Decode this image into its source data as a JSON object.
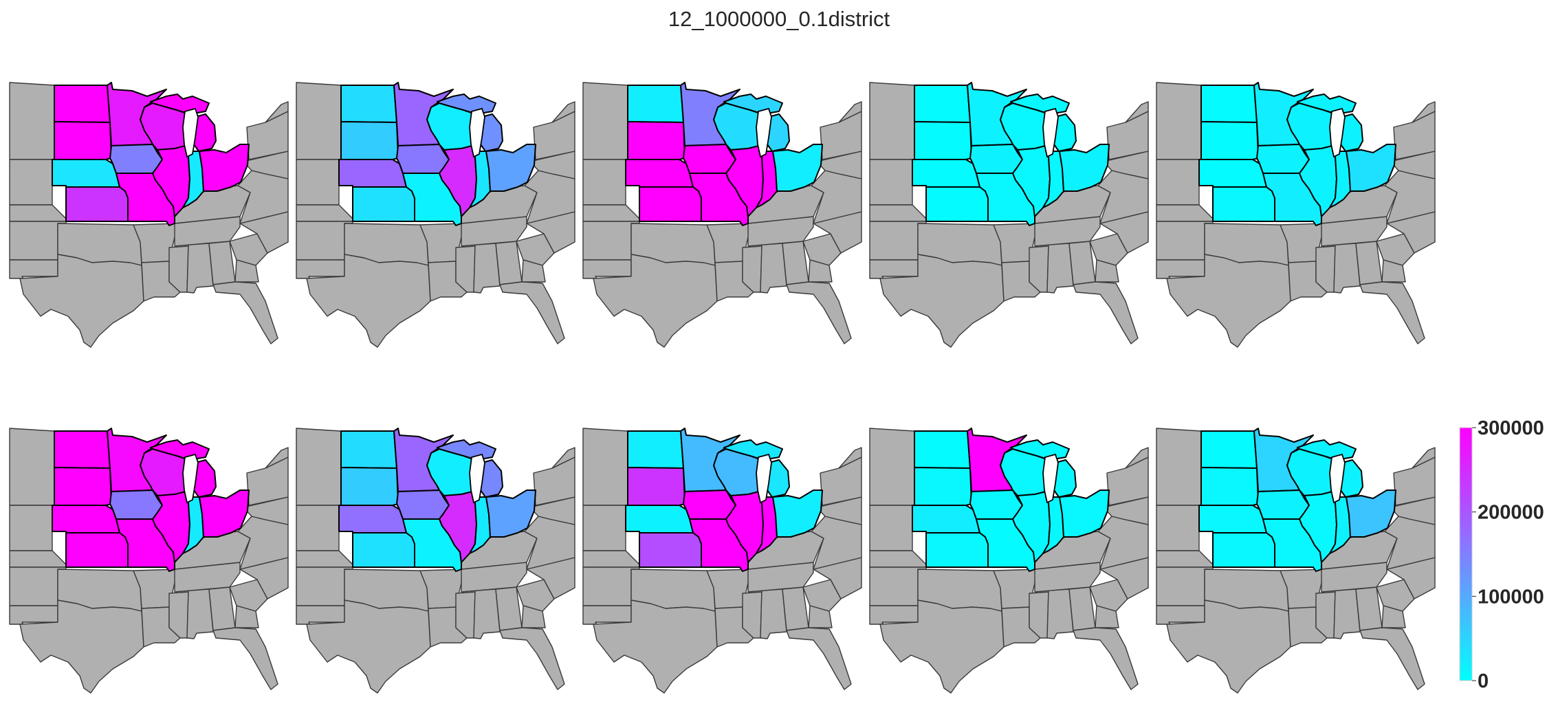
{
  "title": "12_1000000_0.1district",
  "colors": {
    "background_state": "#b0b0b0",
    "scale_low": "#00ffff",
    "scale_high": "#ff00ff"
  },
  "colorbar": {
    "min": 0,
    "max": 300000,
    "ticks": [
      {
        "value": 300000,
        "label": "300000"
      },
      {
        "value": 200000,
        "label": "200000"
      },
      {
        "value": 100000,
        "label": "100000"
      },
      {
        "value": 0,
        "label": "0"
      }
    ]
  },
  "state_order": [
    "ND",
    "SD",
    "NE",
    "KS",
    "MN",
    "IA",
    "MO",
    "WI",
    "IL",
    "MI",
    "IN",
    "OH"
  ],
  "panels": [
    {
      "row": 1,
      "col": 1,
      "values": {
        "ND": 300000,
        "SD": 300000,
        "NE": 30000,
        "KS": 240000,
        "MN": 270000,
        "IA": 150000,
        "MO": 300000,
        "WI": 270000,
        "IL": 300000,
        "MI": 300000,
        "IN": 25000,
        "OH": 300000
      }
    },
    {
      "row": 1,
      "col": 2,
      "values": {
        "ND": 40000,
        "SD": 60000,
        "NE": 180000,
        "KS": 35000,
        "MN": 180000,
        "IA": 160000,
        "MO": 15000,
        "WI": 20000,
        "IL": 250000,
        "MI": 130000,
        "IN": 30000,
        "OH": 110000
      }
    },
    {
      "row": 1,
      "col": 3,
      "values": {
        "ND": 20000,
        "SD": 300000,
        "NE": 300000,
        "KS": 300000,
        "MN": 150000,
        "IA": 300000,
        "MO": 300000,
        "WI": 40000,
        "IL": 300000,
        "MI": 50000,
        "IN": 300000,
        "OH": 20000
      }
    },
    {
      "row": 1,
      "col": 4,
      "values": {
        "ND": 5000,
        "SD": 5000,
        "NE": 5000,
        "KS": 5000,
        "MN": 15000,
        "IA": 15000,
        "MO": 10000,
        "WI": 10000,
        "IL": 10000,
        "MI": 10000,
        "IN": 10000,
        "OH": 15000
      }
    },
    {
      "row": 1,
      "col": 5,
      "values": {
        "ND": 5000,
        "SD": 5000,
        "NE": 5000,
        "KS": 10000,
        "MN": 20000,
        "IA": 15000,
        "MO": 20000,
        "WI": 15000,
        "IL": 15000,
        "MI": 15000,
        "IN": 15000,
        "OH": 35000
      }
    },
    {
      "row": 2,
      "col": 1,
      "values": {
        "ND": 300000,
        "SD": 300000,
        "NE": 300000,
        "KS": 300000,
        "MN": 290000,
        "IA": 160000,
        "MO": 300000,
        "WI": 270000,
        "IL": 300000,
        "MI": 300000,
        "IN": 25000,
        "OH": 300000
      }
    },
    {
      "row": 2,
      "col": 2,
      "values": {
        "ND": 40000,
        "SD": 60000,
        "NE": 170000,
        "KS": 35000,
        "MN": 180000,
        "IA": 160000,
        "MO": 15000,
        "WI": 20000,
        "IL": 250000,
        "MI": 140000,
        "IN": 25000,
        "OH": 110000
      }
    },
    {
      "row": 2,
      "col": 3,
      "values": {
        "ND": 20000,
        "SD": 240000,
        "NE": 15000,
        "KS": 210000,
        "MN": 80000,
        "IA": 300000,
        "MO": 300000,
        "WI": 80000,
        "IL": 300000,
        "MI": 30000,
        "IN": 300000,
        "OH": 20000
      }
    },
    {
      "row": 2,
      "col": 4,
      "values": {
        "ND": 5000,
        "SD": 10000,
        "NE": 20000,
        "KS": 10000,
        "MN": 300000,
        "IA": 10000,
        "MO": 5000,
        "WI": 10000,
        "IL": 10000,
        "MI": 10000,
        "IN": 10000,
        "OH": 10000
      }
    },
    {
      "row": 2,
      "col": 5,
      "values": {
        "ND": 5000,
        "SD": 10000,
        "NE": 10000,
        "KS": 10000,
        "MN": 50000,
        "IA": 15000,
        "MO": 10000,
        "WI": 15000,
        "IL": 10000,
        "MI": 15000,
        "IN": 15000,
        "OH": 70000
      }
    }
  ]
}
